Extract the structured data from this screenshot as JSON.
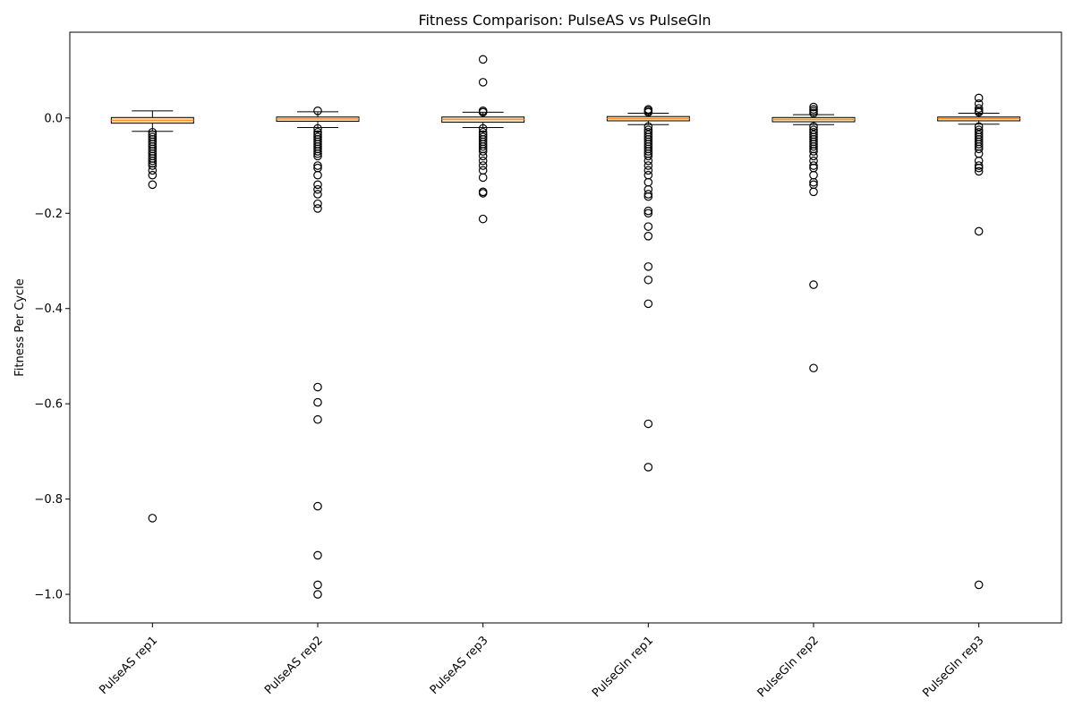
{
  "chart_data": {
    "type": "box",
    "title": "Fitness Comparison: PulseAS vs PulseGln",
    "xlabel": "",
    "ylabel": "Fitness Per Cycle",
    "ylim": [
      -1.06,
      0.18
    ],
    "yticks": [
      -1.0,
      -0.8,
      -0.6,
      -0.4,
      -0.2,
      0.0
    ],
    "ytick_labels": [
      "−1.0",
      "−0.8",
      "−0.6",
      "−0.4",
      "−0.2",
      "0.0"
    ],
    "grid": false,
    "legend": "none",
    "box_color": "#ffdcaa",
    "median_color": "#ff8a30",
    "categories": [
      "PulseAS rep1",
      "PulseAS rep2",
      "PulseAS rep3",
      "PulseGln rep1",
      "PulseGln rep2",
      "PulseGln rep3"
    ],
    "boxes": [
      {
        "label": "PulseAS rep1",
        "q1": -0.011,
        "median": -0.005,
        "q3": 0.001,
        "whisker_low": -0.028,
        "whisker_high": 0.015,
        "outliers": [
          -0.03,
          -0.035,
          -0.04,
          -0.045,
          -0.05,
          -0.055,
          -0.06,
          -0.065,
          -0.07,
          -0.075,
          -0.08,
          -0.085,
          -0.09,
          -0.095,
          -0.1,
          -0.11,
          -0.12,
          -0.14,
          -0.84
        ]
      },
      {
        "label": "PulseAS rep2",
        "q1": -0.007,
        "median": -0.002,
        "q3": 0.002,
        "whisker_low": -0.02,
        "whisker_high": 0.013,
        "outliers": [
          0.015,
          -0.022,
          -0.03,
          -0.035,
          -0.04,
          -0.045,
          -0.05,
          -0.055,
          -0.06,
          -0.065,
          -0.07,
          -0.075,
          -0.08,
          -0.1,
          -0.105,
          -0.12,
          -0.14,
          -0.15,
          -0.16,
          -0.18,
          -0.19,
          -0.565,
          -0.597,
          -0.633,
          -0.815,
          -0.918,
          -0.98,
          -1.0
        ]
      },
      {
        "label": "PulseAS rep3",
        "q1": -0.009,
        "median": -0.003,
        "q3": 0.002,
        "whisker_low": -0.02,
        "whisker_high": 0.012,
        "outliers": [
          0.123,
          0.075,
          0.015,
          0.012,
          -0.022,
          -0.03,
          -0.035,
          -0.04,
          -0.045,
          -0.05,
          -0.055,
          -0.06,
          -0.065,
          -0.07,
          -0.08,
          -0.09,
          -0.1,
          -0.11,
          -0.125,
          -0.155,
          -0.158,
          -0.212
        ]
      },
      {
        "label": "PulseGln rep1",
        "q1": -0.006,
        "median": -0.001,
        "q3": 0.003,
        "whisker_low": -0.014,
        "whisker_high": 0.01,
        "outliers": [
          0.018,
          0.015,
          0.012,
          -0.018,
          -0.025,
          -0.03,
          -0.035,
          -0.04,
          -0.045,
          -0.05,
          -0.055,
          -0.06,
          -0.065,
          -0.07,
          -0.075,
          -0.08,
          -0.09,
          -0.1,
          -0.11,
          -0.12,
          -0.135,
          -0.15,
          -0.16,
          -0.165,
          -0.195,
          -0.2,
          -0.228,
          -0.248,
          -0.312,
          -0.34,
          -0.39,
          -0.642,
          -0.733
        ]
      },
      {
        "label": "PulseGln rep2",
        "q1": -0.008,
        "median": -0.003,
        "q3": 0.001,
        "whisker_low": -0.014,
        "whisker_high": 0.007,
        "outliers": [
          0.023,
          0.018,
          0.014,
          0.01,
          -0.018,
          -0.025,
          -0.03,
          -0.035,
          -0.04,
          -0.045,
          -0.05,
          -0.055,
          -0.06,
          -0.065,
          -0.07,
          -0.08,
          -0.09,
          -0.1,
          -0.105,
          -0.12,
          -0.135,
          -0.14,
          -0.155,
          -0.35,
          -0.525
        ]
      },
      {
        "label": "PulseGln rep3",
        "q1": -0.006,
        "median": -0.001,
        "q3": 0.002,
        "whisker_low": -0.013,
        "whisker_high": 0.01,
        "outliers": [
          0.042,
          0.03,
          0.02,
          0.015,
          0.012,
          -0.018,
          -0.025,
          -0.03,
          -0.035,
          -0.04,
          -0.045,
          -0.05,
          -0.055,
          -0.06,
          -0.065,
          -0.075,
          -0.09,
          -0.1,
          -0.105,
          -0.112,
          -0.238,
          -0.98
        ]
      }
    ]
  }
}
